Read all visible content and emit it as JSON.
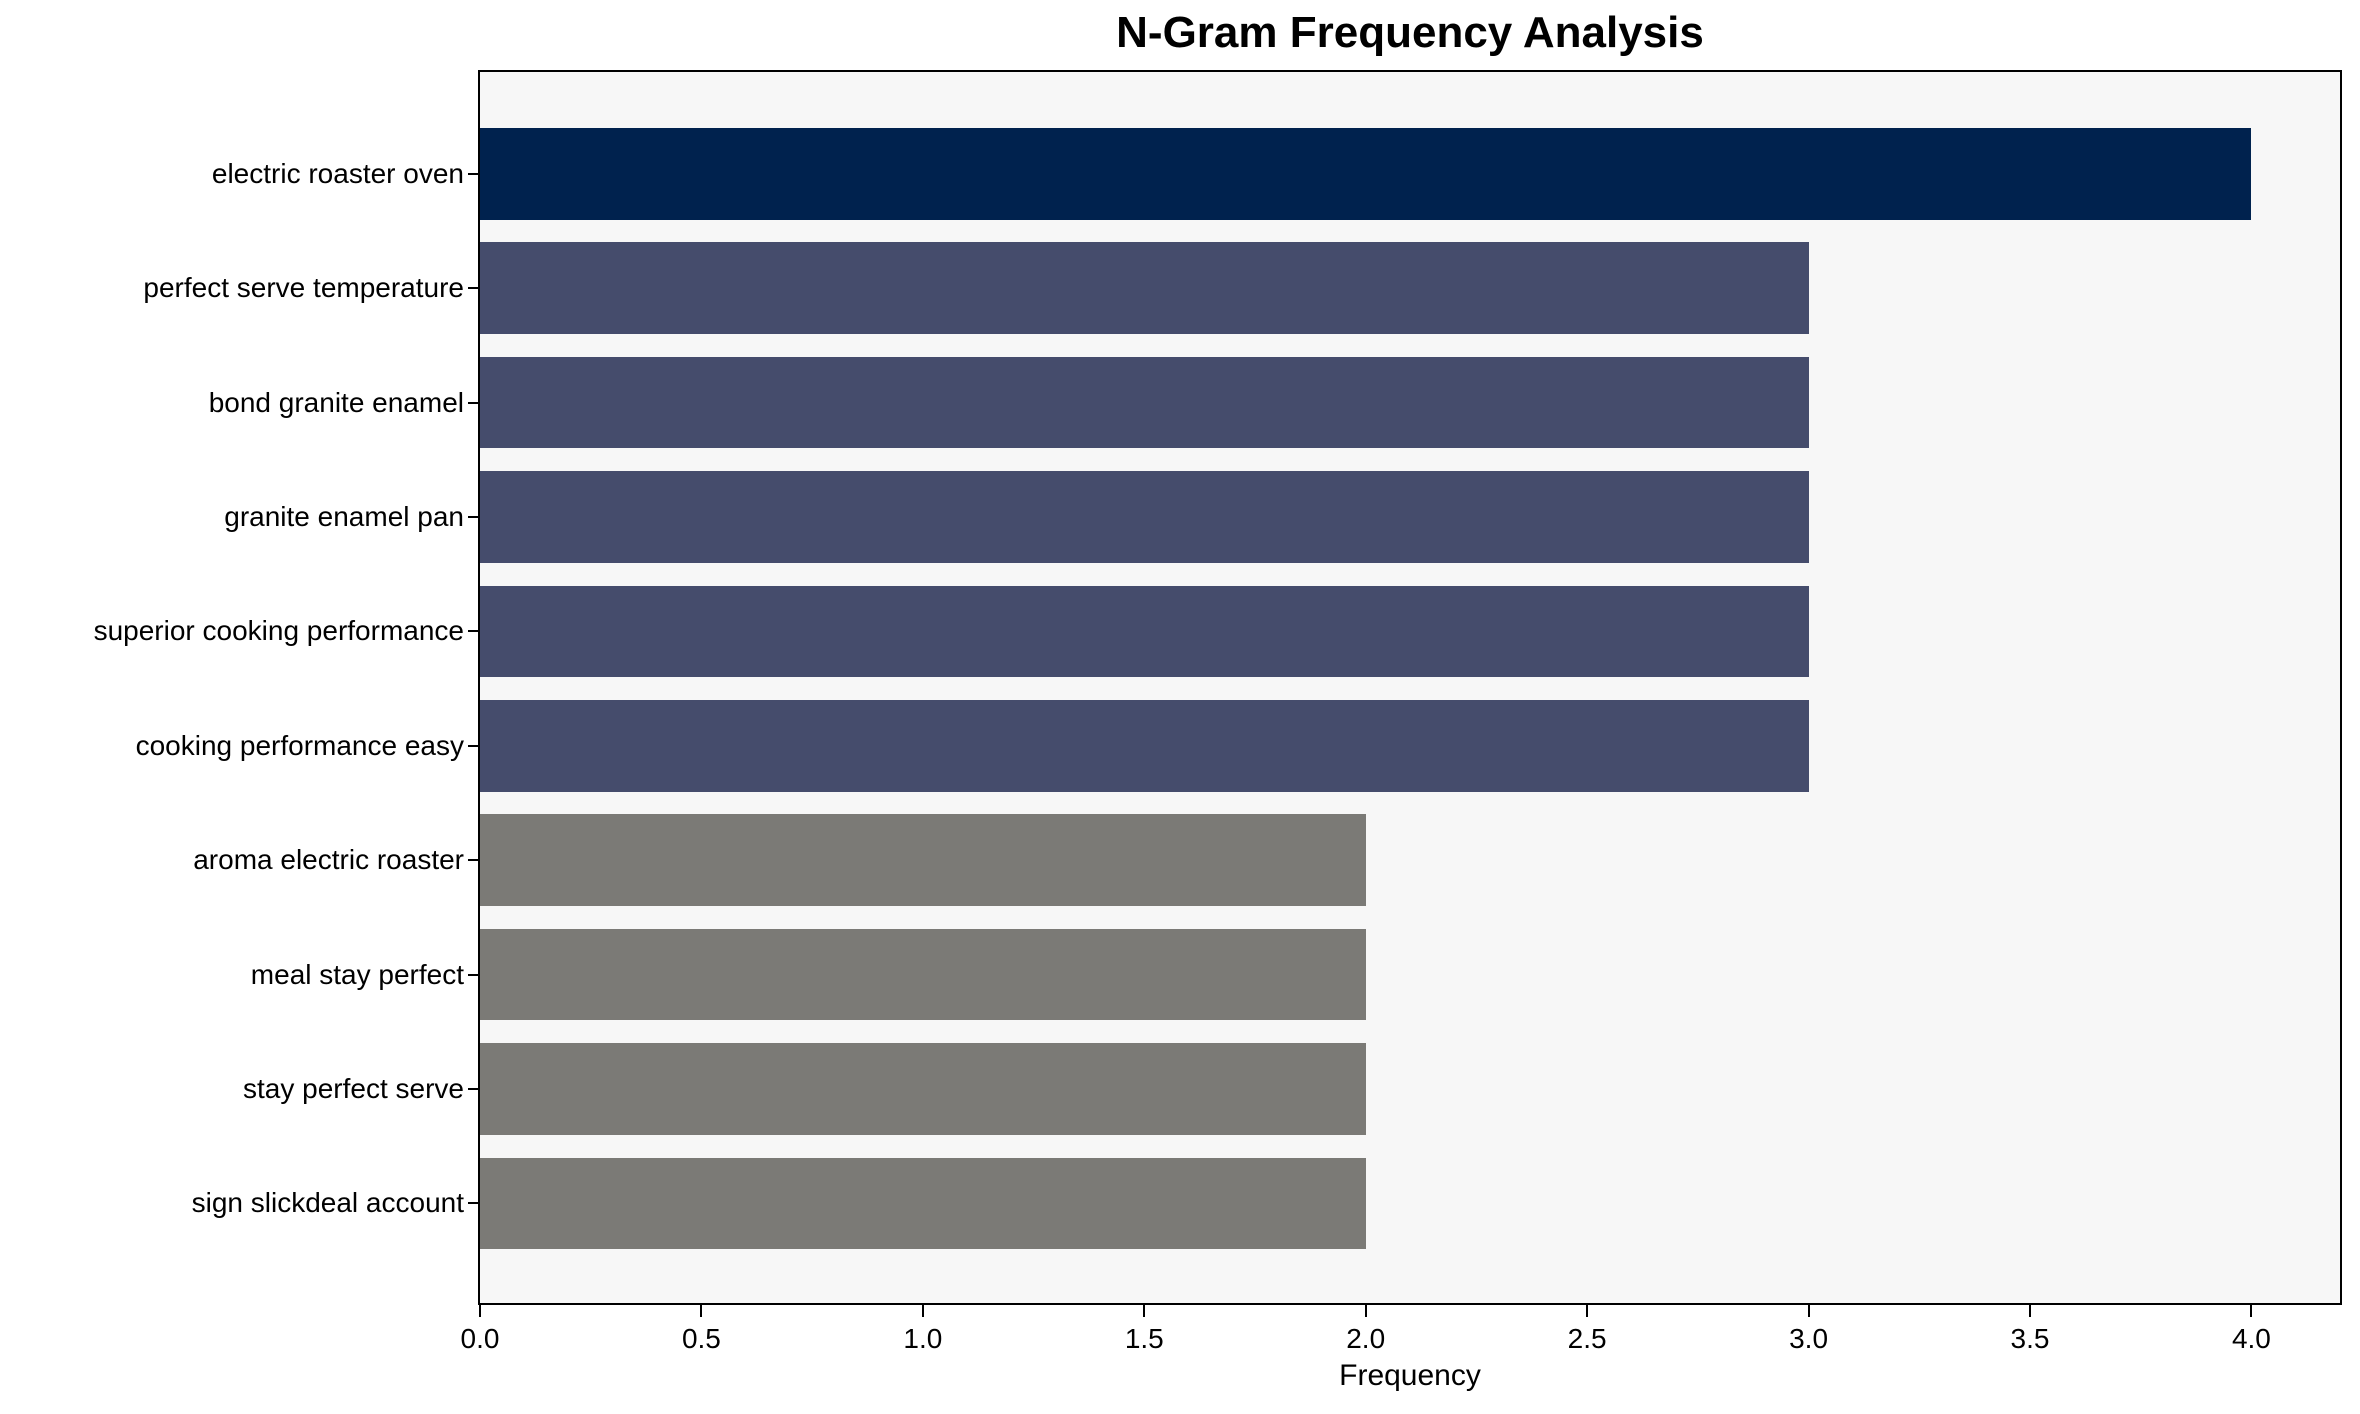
{
  "chart_data": {
    "type": "bar",
    "orientation": "horizontal",
    "title": "N-Gram Frequency Analysis",
    "xlabel": "Frequency",
    "ylabel": "",
    "categories": [
      "electric roaster oven",
      "perfect serve temperature",
      "bond granite enamel",
      "granite enamel pan",
      "superior cooking performance",
      "cooking performance easy",
      "aroma electric roaster",
      "meal stay perfect",
      "stay perfect serve",
      "sign slickdeal account"
    ],
    "values": [
      4,
      3,
      3,
      3,
      3,
      3,
      2,
      2,
      2,
      2
    ],
    "bar_colors": [
      "#00224e",
      "#454c6c",
      "#454c6c",
      "#454c6c",
      "#454c6c",
      "#454c6c",
      "#7b7a76",
      "#7b7a76",
      "#7b7a76",
      "#7b7a76"
    ],
    "xlim": [
      0,
      4.2
    ],
    "xticks": [
      0,
      0.5,
      1,
      1.5,
      2,
      2.5,
      3,
      3.5,
      4
    ],
    "xtick_labels": [
      "0.0",
      "0.5",
      "1.0",
      "1.5",
      "2.0",
      "2.5",
      "3.0",
      "3.5",
      "4.0"
    ],
    "grid": false,
    "legend": null,
    "plot_background": "#f7f7f7",
    "figure_background": "#ffffff",
    "spine_color": "#000000",
    "text_color": "#000000"
  }
}
